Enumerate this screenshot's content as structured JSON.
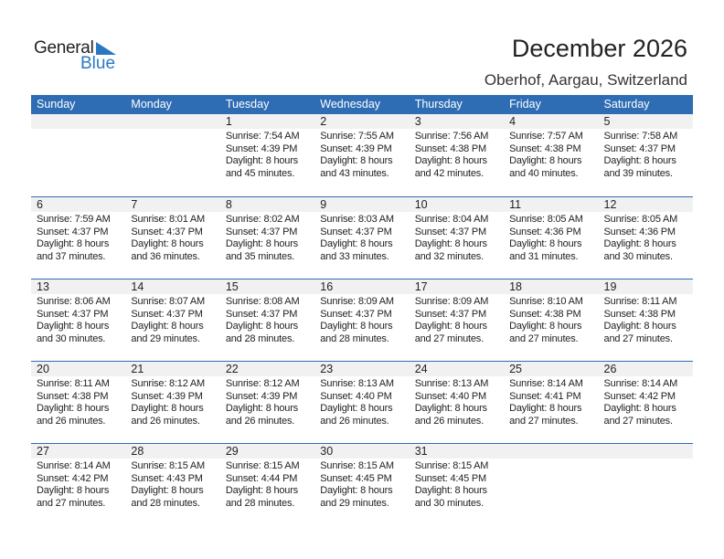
{
  "logo": {
    "text_general": "General",
    "text_blue": "Blue"
  },
  "header": {
    "title": "December 2026",
    "location": "Oberhof, Aargau, Switzerland"
  },
  "colors": {
    "accent": "#2e6db4",
    "logo_blue": "#2b78c2",
    "date_row_bg": "#f1f1f1"
  },
  "weekdays": [
    "Sunday",
    "Monday",
    "Tuesday",
    "Wednesday",
    "Thursday",
    "Friday",
    "Saturday"
  ],
  "weeks": [
    [
      null,
      null,
      {
        "day": "1",
        "sunrise": "Sunrise: 7:54 AM",
        "sunset": "Sunset: 4:39 PM",
        "daylight": "Daylight: 8 hours",
        "minutes": "and 45 minutes."
      },
      {
        "day": "2",
        "sunrise": "Sunrise: 7:55 AM",
        "sunset": "Sunset: 4:39 PM",
        "daylight": "Daylight: 8 hours",
        "minutes": "and 43 minutes."
      },
      {
        "day": "3",
        "sunrise": "Sunrise: 7:56 AM",
        "sunset": "Sunset: 4:38 PM",
        "daylight": "Daylight: 8 hours",
        "minutes": "and 42 minutes."
      },
      {
        "day": "4",
        "sunrise": "Sunrise: 7:57 AM",
        "sunset": "Sunset: 4:38 PM",
        "daylight": "Daylight: 8 hours",
        "minutes": "and 40 minutes."
      },
      {
        "day": "5",
        "sunrise": "Sunrise: 7:58 AM",
        "sunset": "Sunset: 4:37 PM",
        "daylight": "Daylight: 8 hours",
        "minutes": "and 39 minutes."
      }
    ],
    [
      {
        "day": "6",
        "sunrise": "Sunrise: 7:59 AM",
        "sunset": "Sunset: 4:37 PM",
        "daylight": "Daylight: 8 hours",
        "minutes": "and 37 minutes."
      },
      {
        "day": "7",
        "sunrise": "Sunrise: 8:01 AM",
        "sunset": "Sunset: 4:37 PM",
        "daylight": "Daylight: 8 hours",
        "minutes": "and 36 minutes."
      },
      {
        "day": "8",
        "sunrise": "Sunrise: 8:02 AM",
        "sunset": "Sunset: 4:37 PM",
        "daylight": "Daylight: 8 hours",
        "minutes": "and 35 minutes."
      },
      {
        "day": "9",
        "sunrise": "Sunrise: 8:03 AM",
        "sunset": "Sunset: 4:37 PM",
        "daylight": "Daylight: 8 hours",
        "minutes": "and 33 minutes."
      },
      {
        "day": "10",
        "sunrise": "Sunrise: 8:04 AM",
        "sunset": "Sunset: 4:37 PM",
        "daylight": "Daylight: 8 hours",
        "minutes": "and 32 minutes."
      },
      {
        "day": "11",
        "sunrise": "Sunrise: 8:05 AM",
        "sunset": "Sunset: 4:36 PM",
        "daylight": "Daylight: 8 hours",
        "minutes": "and 31 minutes."
      },
      {
        "day": "12",
        "sunrise": "Sunrise: 8:05 AM",
        "sunset": "Sunset: 4:36 PM",
        "daylight": "Daylight: 8 hours",
        "minutes": "and 30 minutes."
      }
    ],
    [
      {
        "day": "13",
        "sunrise": "Sunrise: 8:06 AM",
        "sunset": "Sunset: 4:37 PM",
        "daylight": "Daylight: 8 hours",
        "minutes": "and 30 minutes."
      },
      {
        "day": "14",
        "sunrise": "Sunrise: 8:07 AM",
        "sunset": "Sunset: 4:37 PM",
        "daylight": "Daylight: 8 hours",
        "minutes": "and 29 minutes."
      },
      {
        "day": "15",
        "sunrise": "Sunrise: 8:08 AM",
        "sunset": "Sunset: 4:37 PM",
        "daylight": "Daylight: 8 hours",
        "minutes": "and 28 minutes."
      },
      {
        "day": "16",
        "sunrise": "Sunrise: 8:09 AM",
        "sunset": "Sunset: 4:37 PM",
        "daylight": "Daylight: 8 hours",
        "minutes": "and 28 minutes."
      },
      {
        "day": "17",
        "sunrise": "Sunrise: 8:09 AM",
        "sunset": "Sunset: 4:37 PM",
        "daylight": "Daylight: 8 hours",
        "minutes": "and 27 minutes."
      },
      {
        "day": "18",
        "sunrise": "Sunrise: 8:10 AM",
        "sunset": "Sunset: 4:38 PM",
        "daylight": "Daylight: 8 hours",
        "minutes": "and 27 minutes."
      },
      {
        "day": "19",
        "sunrise": "Sunrise: 8:11 AM",
        "sunset": "Sunset: 4:38 PM",
        "daylight": "Daylight: 8 hours",
        "minutes": "and 27 minutes."
      }
    ],
    [
      {
        "day": "20",
        "sunrise": "Sunrise: 8:11 AM",
        "sunset": "Sunset: 4:38 PM",
        "daylight": "Daylight: 8 hours",
        "minutes": "and 26 minutes."
      },
      {
        "day": "21",
        "sunrise": "Sunrise: 8:12 AM",
        "sunset": "Sunset: 4:39 PM",
        "daylight": "Daylight: 8 hours",
        "minutes": "and 26 minutes."
      },
      {
        "day": "22",
        "sunrise": "Sunrise: 8:12 AM",
        "sunset": "Sunset: 4:39 PM",
        "daylight": "Daylight: 8 hours",
        "minutes": "and 26 minutes."
      },
      {
        "day": "23",
        "sunrise": "Sunrise: 8:13 AM",
        "sunset": "Sunset: 4:40 PM",
        "daylight": "Daylight: 8 hours",
        "minutes": "and 26 minutes."
      },
      {
        "day": "24",
        "sunrise": "Sunrise: 8:13 AM",
        "sunset": "Sunset: 4:40 PM",
        "daylight": "Daylight: 8 hours",
        "minutes": "and 26 minutes."
      },
      {
        "day": "25",
        "sunrise": "Sunrise: 8:14 AM",
        "sunset": "Sunset: 4:41 PM",
        "daylight": "Daylight: 8 hours",
        "minutes": "and 27 minutes."
      },
      {
        "day": "26",
        "sunrise": "Sunrise: 8:14 AM",
        "sunset": "Sunset: 4:42 PM",
        "daylight": "Daylight: 8 hours",
        "minutes": "and 27 minutes."
      }
    ],
    [
      {
        "day": "27",
        "sunrise": "Sunrise: 8:14 AM",
        "sunset": "Sunset: 4:42 PM",
        "daylight": "Daylight: 8 hours",
        "minutes": "and 27 minutes."
      },
      {
        "day": "28",
        "sunrise": "Sunrise: 8:15 AM",
        "sunset": "Sunset: 4:43 PM",
        "daylight": "Daylight: 8 hours",
        "minutes": "and 28 minutes."
      },
      {
        "day": "29",
        "sunrise": "Sunrise: 8:15 AM",
        "sunset": "Sunset: 4:44 PM",
        "daylight": "Daylight: 8 hours",
        "minutes": "and 28 minutes."
      },
      {
        "day": "30",
        "sunrise": "Sunrise: 8:15 AM",
        "sunset": "Sunset: 4:45 PM",
        "daylight": "Daylight: 8 hours",
        "minutes": "and 29 minutes."
      },
      {
        "day": "31",
        "sunrise": "Sunrise: 8:15 AM",
        "sunset": "Sunset: 4:45 PM",
        "daylight": "Daylight: 8 hours",
        "minutes": "and 30 minutes."
      },
      null,
      null
    ]
  ]
}
